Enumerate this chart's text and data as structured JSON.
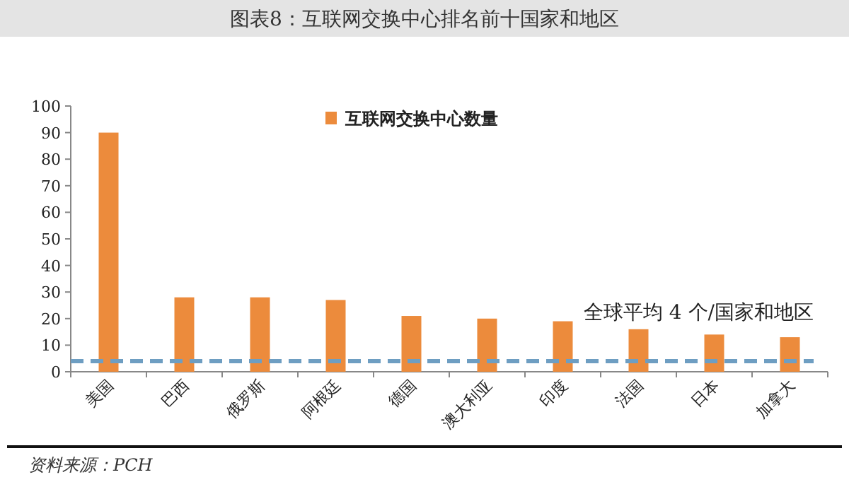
{
  "chart_data": {
    "type": "bar",
    "title": "图表8：互联网交换中心排名前十国家和地区",
    "categories": [
      "美国",
      "巴西",
      "俄罗斯",
      "阿根廷",
      "德国",
      "澳大利亚",
      "印度",
      "法国",
      "日本",
      "加拿大"
    ],
    "series": [
      {
        "name": "互联网交换中心数量",
        "color": "#ec8b3c",
        "values": [
          90,
          28,
          28,
          27,
          21,
          20,
          19,
          16,
          14,
          13
        ]
      }
    ],
    "ylim": [
      0,
      100
    ],
    "yticks": [
      0,
      10,
      20,
      30,
      40,
      50,
      60,
      70,
      80,
      90,
      100
    ],
    "grid": false,
    "legend": "top",
    "ref_lines": [
      {
        "axis": "y",
        "value": 4,
        "label": "全球平均 4 个/国家和地区",
        "color": "#6e9ec2",
        "line_style": "dashed"
      }
    ],
    "annotations": [
      "资料来源：PCH"
    ]
  }
}
